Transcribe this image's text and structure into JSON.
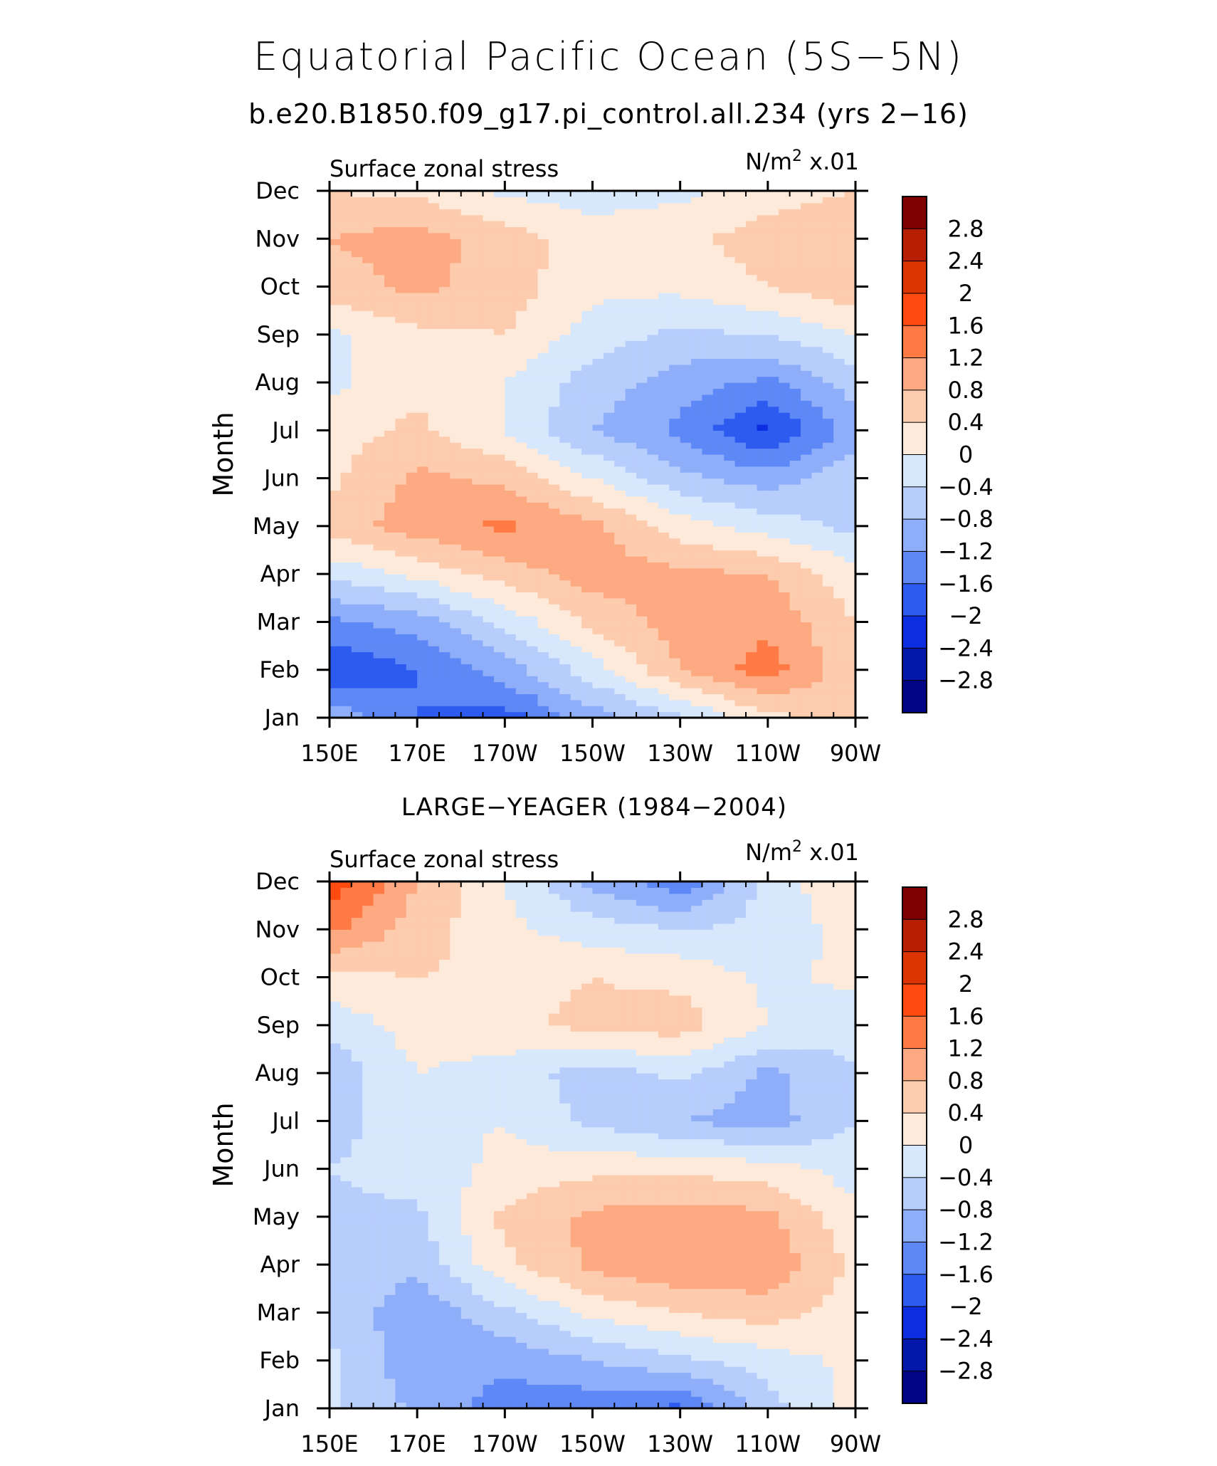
{
  "figure": {
    "title": "Equatorial Pacific Ocean (5S−5N)",
    "subtitle": "b.e20.B1850.f09_g17.pi_control.all.234 (yrs 2−16)"
  },
  "colorbar": {
    "levels": [
      2.8,
      2.4,
      2,
      1.6,
      1.2,
      0.8,
      0.4,
      0,
      -0.4,
      -0.8,
      -1.2,
      -1.6,
      -2,
      -2.4,
      -2.8
    ],
    "labels": [
      "2.8",
      "2.4",
      "2",
      "1.6",
      "1.2",
      "0.8",
      "0.4",
      "0",
      "−0.4",
      "−0.8",
      "−1.2",
      "−1.6",
      "−2",
      "−2.4",
      "−2.8"
    ],
    "colors": [
      "#7f0000",
      "#b51e00",
      "#dc3500",
      "#ff4a10",
      "#ff7a45",
      "#fdaa83",
      "#fdcbad",
      "#feeada",
      "#d7e8fd",
      "#b7cdfc",
      "#8eaefa",
      "#5f88f7",
      "#2d5bf0",
      "#0c2de0",
      "#0318ab",
      "#020585"
    ]
  },
  "chart_data": [
    {
      "type": "heatmap",
      "panel_title": "",
      "field_label": "Surface zonal stress",
      "units_base": "N/m",
      "units_exp": "2",
      "units_scale": " x.01",
      "ylabel": "Month",
      "x_tick_labels": [
        "150E",
        "170E",
        "170W",
        "150W",
        "130W",
        "110W",
        "90W"
      ],
      "x": [
        150,
        170,
        190,
        210,
        230,
        250,
        270
      ],
      "y_tick_labels": [
        "Jan",
        "Feb",
        "Mar",
        "Apr",
        "May",
        "Jun",
        "Jul",
        "Aug",
        "Sep",
        "Oct",
        "Nov",
        "Dec"
      ],
      "values": [
        [
          -0.9,
          -1.6,
          -1.8,
          -1.0,
          -0.5,
          0.3,
          0.5
        ],
        [
          -2.0,
          -1.6,
          -1.0,
          -0.2,
          0.8,
          1.4,
          0.5
        ],
        [
          -1.3,
          -1.0,
          -0.3,
          0.5,
          1.0,
          1.1,
          0.4
        ],
        [
          -0.3,
          0.1,
          0.6,
          1.0,
          0.9,
          0.8,
          0.1
        ],
        [
          0.6,
          1.0,
          1.3,
          0.9,
          0.2,
          -0.2,
          -0.5
        ],
        [
          0.3,
          0.9,
          0.7,
          0.0,
          -0.7,
          -1.0,
          -0.5
        ],
        [
          0.2,
          0.5,
          0.0,
          -0.8,
          -1.3,
          -2.1,
          -1.0
        ],
        [
          -0.1,
          0.3,
          0.0,
          -0.6,
          -1.0,
          -1.3,
          -0.6
        ],
        [
          -0.1,
          0.3,
          0.4,
          -0.2,
          -0.5,
          -0.4,
          0.0
        ],
        [
          0.6,
          0.9,
          0.6,
          0.1,
          0.1,
          0.4,
          0.7
        ],
        [
          0.8,
          1.0,
          0.6,
          0.2,
          0.3,
          0.6,
          0.8
        ],
        [
          0.4,
          0.3,
          -0.1,
          -0.2,
          -0.1,
          0.2,
          0.4
        ]
      ]
    },
    {
      "type": "heatmap",
      "panel_title": "LARGE−YEAGER (1984−2004)",
      "field_label": "Surface zonal stress",
      "units_base": "N/m",
      "units_exp": "2",
      "units_scale": " x.01",
      "ylabel": "Month",
      "x_tick_labels": [
        "150E",
        "170E",
        "170W",
        "150W",
        "130W",
        "110W",
        "90W"
      ],
      "x": [
        150,
        170,
        190,
        210,
        230,
        250,
        270
      ],
      "y_tick_labels": [
        "Jan",
        "Feb",
        "Mar",
        "Apr",
        "May",
        "Jun",
        "Jul",
        "Aug",
        "Sep",
        "Oct",
        "Nov",
        "Dec"
      ],
      "values": [
        [
          -0.3,
          -0.9,
          -1.4,
          -1.5,
          -1.7,
          -0.6,
          0.2
        ],
        [
          -0.3,
          -1.1,
          -1.1,
          -0.8,
          -0.5,
          -0.2,
          0.1
        ],
        [
          -0.5,
          -1.1,
          -0.5,
          0.1,
          0.4,
          0.6,
          0.2
        ],
        [
          -0.5,
          -0.7,
          0.3,
          0.9,
          1.2,
          1.1,
          0.3
        ],
        [
          -0.5,
          -0.5,
          0.5,
          0.9,
          1.0,
          0.9,
          0.1
        ],
        [
          -0.4,
          -0.2,
          0.1,
          0.3,
          0.3,
          0.2,
          -0.2
        ],
        [
          -0.6,
          -0.1,
          0.0,
          -0.5,
          -0.8,
          -1.0,
          -0.4
        ],
        [
          -0.7,
          0.0,
          -0.2,
          -0.6,
          -0.3,
          -0.9,
          -0.4
        ],
        [
          -0.3,
          0.2,
          0.3,
          0.5,
          0.6,
          0.0,
          -0.3
        ],
        [
          0.3,
          0.4,
          0.3,
          0.4,
          0.3,
          -0.1,
          0.1
        ],
        [
          1.3,
          0.6,
          0.1,
          -0.2,
          -0.4,
          -0.3,
          0.2
        ],
        [
          1.9,
          0.8,
          0.0,
          -0.9,
          -1.5,
          -0.2,
          0.3
        ]
      ]
    }
  ]
}
